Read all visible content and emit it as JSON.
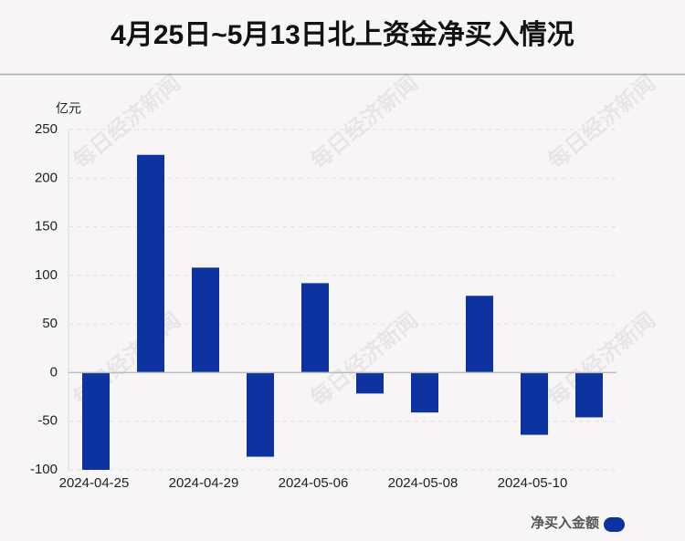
{
  "chart_data": {
    "type": "bar",
    "title": "4月25日~5月13日北上资金净买入情况",
    "y_unit": "亿元",
    "watermark": "每日经济新闻",
    "categories": [
      "2024-04-25",
      null,
      "2024-04-29",
      null,
      "2024-05-06",
      null,
      "2024-05-08",
      null,
      "2024-05-10",
      null
    ],
    "series": [
      {
        "name": "净买入金额",
        "color": "#0c33a0",
        "values": [
          -100,
          224,
          108,
          -86.5,
          92,
          -21.5,
          -41,
          79,
          -64,
          -46
        ]
      }
    ],
    "ylim": [
      -100,
      250
    ],
    "yticks": [
      -100,
      -50,
      0,
      50,
      100,
      150,
      200,
      250
    ],
    "grid": true,
    "legend": "bottom-right"
  }
}
